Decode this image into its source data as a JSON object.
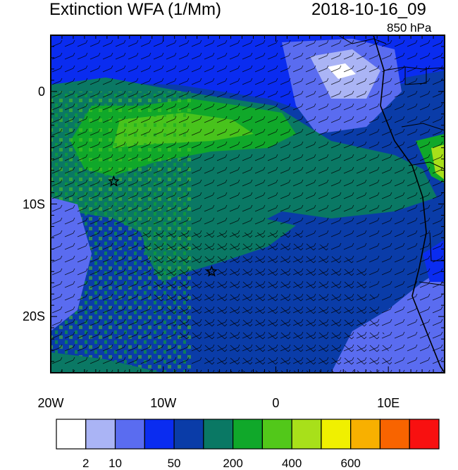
{
  "title_left": "Extinction WFA (1/Mm)",
  "title_right": "2018-10-16_09",
  "level": "850 hPa",
  "x_ticks": [
    {
      "value": -20,
      "label": "20W"
    },
    {
      "value": -10,
      "label": "10W"
    },
    {
      "value": 0,
      "label": "0"
    },
    {
      "value": 10,
      "label": "10E"
    }
  ],
  "y_ticks": [
    {
      "value": 0,
      "label": "0"
    },
    {
      "value": -10,
      "label": "10S"
    },
    {
      "value": -20,
      "label": "20S"
    }
  ],
  "lon_range": [
    -20,
    15
  ],
  "lat_range": [
    -25,
    5
  ],
  "colorbar": {
    "colors": [
      "#ffffff",
      "#aab4f5",
      "#5a6cf0",
      "#0a2cf0",
      "#0a3ca8",
      "#0a7864",
      "#10a82a",
      "#52c81a",
      "#a8e01a",
      "#f0f000",
      "#f8b000",
      "#f86400",
      "#f81010"
    ],
    "labels": [
      {
        "index": 1,
        "text": "2"
      },
      {
        "index": 2,
        "text": "10"
      },
      {
        "index": 4,
        "text": "50"
      },
      {
        "index": 6,
        "text": "200"
      },
      {
        "index": 8,
        "text": "400"
      },
      {
        "index": 10,
        "text": "600"
      }
    ]
  },
  "markers": [
    {
      "lon": -14.4,
      "lat": -8.0,
      "shape": "star"
    },
    {
      "lon": -5.7,
      "lat": -16.0,
      "shape": "star"
    }
  ]
}
